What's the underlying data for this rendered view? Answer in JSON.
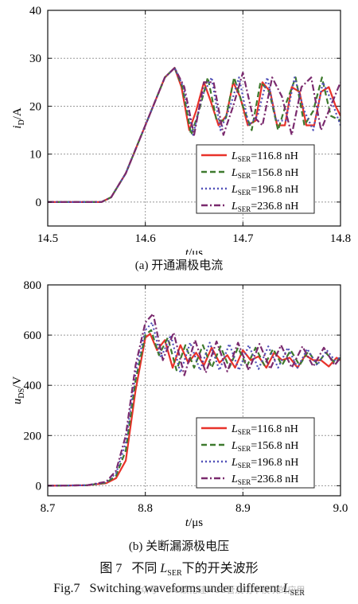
{
  "figure": {
    "caption_cn_prefix": "图 7",
    "caption_cn_mid": "不同",
    "caption_cn_var": "L",
    "caption_cn_var_sub": "SER",
    "caption_cn_suffix": "下的开关波形",
    "caption_en_prefix": "Fig.7",
    "caption_en_text": "Switching waveforms under different",
    "caption_en_var": "L",
    "caption_en_var_sub": "SER",
    "watermark": "公众号 · SiC碳化硅MOS管及功率模块的应用"
  },
  "legend_entries": [
    {
      "var": "L",
      "sub": "SER",
      "value": "=116.8 nH",
      "color": "#e8322a",
      "dash": "solid"
    },
    {
      "var": "L",
      "sub": "SER",
      "value": "=156.8 nH",
      "color": "#3e7a2e",
      "dash": "dash"
    },
    {
      "var": "L",
      "sub": "SER",
      "value": "=196.8 nH",
      "color": "#5050b8",
      "dash": "dot"
    },
    {
      "var": "L",
      "sub": "SER",
      "value": "=236.8 nH",
      "color": "#7a2a6e",
      "dash": "dashdot"
    }
  ],
  "chart_data": [
    {
      "type": "line",
      "panel_caption": "(a) 开通漏极电流",
      "xlabel": "t/μs",
      "ylabel": "iD/A",
      "ylabel_var": "i",
      "ylabel_sub": "D",
      "ylabel_unit": "/A",
      "xlim": [
        14.5,
        14.8
      ],
      "ylim": [
        -5,
        40
      ],
      "xticks": [
        14.5,
        14.6,
        14.7,
        14.8
      ],
      "xtick_labels": [
        "14.5",
        "14.6",
        "14.7",
        "14.8"
      ],
      "yticks": [
        0,
        10,
        20,
        30,
        40
      ],
      "ytick_labels": [
        "0",
        "10",
        "20",
        "30",
        "40"
      ],
      "grid": true,
      "legend_position": "bottom-right",
      "series": [
        {
          "name": "LSER=116.8 nH",
          "color": "#e8322a",
          "dash": "solid",
          "x": [
            14.5,
            14.555,
            14.565,
            14.58,
            14.6,
            14.62,
            14.63,
            14.637,
            14.645,
            14.652,
            14.66,
            14.667,
            14.675,
            14.683,
            14.69,
            14.697,
            14.705,
            14.713,
            14.72,
            14.728,
            14.735,
            14.743,
            14.75,
            14.758,
            14.765,
            14.773,
            14.78,
            14.788,
            14.795,
            14.8
          ],
          "y": [
            0,
            0,
            1,
            6,
            16,
            26,
            28,
            24,
            15,
            19,
            25,
            21,
            16,
            18,
            25,
            22,
            16,
            17,
            25,
            23,
            16,
            16,
            24,
            23,
            16,
            16,
            23,
            24,
            20,
            18
          ]
        },
        {
          "name": "LSER=156.8 nH",
          "color": "#3e7a2e",
          "dash": "dash",
          "x": [
            14.5,
            14.555,
            14.565,
            14.58,
            14.6,
            14.62,
            14.63,
            14.638,
            14.647,
            14.655,
            14.664,
            14.673,
            14.682,
            14.691,
            14.7,
            14.709,
            14.718,
            14.727,
            14.736,
            14.745,
            14.754,
            14.763,
            14.772,
            14.781,
            14.79,
            14.8
          ],
          "y": [
            0,
            0,
            1,
            6,
            16,
            26,
            28,
            24,
            14,
            19,
            26,
            17,
            17,
            26,
            20,
            15,
            25,
            23,
            15,
            21,
            26,
            16,
            19,
            26,
            18,
            17
          ]
        },
        {
          "name": "LSER=196.8 nH",
          "color": "#5050b8",
          "dash": "dot",
          "x": [
            14.5,
            14.555,
            14.565,
            14.58,
            14.6,
            14.62,
            14.63,
            14.639,
            14.649,
            14.658,
            14.668,
            14.677,
            14.687,
            14.696,
            14.706,
            14.715,
            14.725,
            14.734,
            14.744,
            14.753,
            14.763,
            14.772,
            14.782,
            14.791,
            14.8
          ],
          "y": [
            0,
            0,
            1,
            6,
            16,
            26,
            28,
            24,
            14,
            22,
            26,
            15,
            20,
            26,
            16,
            18,
            26,
            17,
            17,
            26,
            19,
            15,
            25,
            21,
            16
          ]
        },
        {
          "name": "LSER=236.8 nH",
          "color": "#7a2a6e",
          "dash": "dashdot",
          "x": [
            14.5,
            14.555,
            14.565,
            14.58,
            14.6,
            14.62,
            14.63,
            14.64,
            14.65,
            14.66,
            14.67,
            14.68,
            14.69,
            14.7,
            14.71,
            14.72,
            14.73,
            14.74,
            14.75,
            14.76,
            14.77,
            14.78,
            14.79,
            14.8
          ],
          "y": [
            0,
            0,
            1,
            6,
            16,
            26,
            28,
            24,
            14,
            25,
            25,
            14,
            20,
            27,
            18,
            16,
            26,
            22,
            14,
            24,
            26,
            15,
            20,
            25
          ]
        }
      ]
    },
    {
      "type": "line",
      "panel_caption": "(b) 关断漏源极电压",
      "xlabel": "t/μs",
      "ylabel": "uDS/V",
      "ylabel_var": "u",
      "ylabel_sub": "DS",
      "ylabel_unit": "/V",
      "xlim": [
        8.7,
        9.0
      ],
      "ylim": [
        -40,
        800
      ],
      "xticks": [
        8.7,
        8.8,
        8.9,
        9.0
      ],
      "xtick_labels": [
        "8.7",
        "8.8",
        "8.9",
        "9.0"
      ],
      "yticks": [
        0,
        200,
        400,
        600,
        800
      ],
      "ytick_labels": [
        "0",
        "200",
        "400",
        "600",
        "800"
      ],
      "grid": true,
      "legend_position": "bottom-right",
      "series": [
        {
          "name": "LSER=116.8 nH",
          "color": "#e8322a",
          "dash": "solid",
          "x": [
            8.7,
            8.74,
            8.76,
            8.77,
            8.78,
            8.79,
            8.8,
            8.805,
            8.812,
            8.82,
            8.828,
            8.836,
            8.844,
            8.852,
            8.86,
            8.868,
            8.876,
            8.884,
            8.892,
            8.9,
            8.908,
            8.916,
            8.924,
            8.932,
            8.94,
            8.948,
            8.956,
            8.964,
            8.972,
            8.98,
            8.988,
            8.996,
            9.0
          ],
          "y": [
            0,
            2,
            10,
            30,
            100,
            380,
            590,
            605,
            540,
            580,
            470,
            560,
            490,
            530,
            480,
            550,
            490,
            520,
            470,
            540,
            500,
            515,
            470,
            530,
            500,
            510,
            470,
            520,
            500,
            500,
            475,
            510,
            500
          ]
        },
        {
          "name": "LSER=156.8 nH",
          "color": "#3e7a2e",
          "dash": "dash",
          "x": [
            8.7,
            8.74,
            8.76,
            8.77,
            8.78,
            8.79,
            8.8,
            8.806,
            8.814,
            8.823,
            8.832,
            8.841,
            8.85,
            8.859,
            8.868,
            8.877,
            8.886,
            8.895,
            8.904,
            8.913,
            8.922,
            8.931,
            8.94,
            8.949,
            8.958,
            8.967,
            8.976,
            8.985,
            8.994,
            9.0
          ],
          "y": [
            0,
            2,
            12,
            40,
            140,
            420,
            600,
            620,
            520,
            590,
            460,
            560,
            470,
            560,
            470,
            555,
            470,
            550,
            475,
            550,
            480,
            545,
            480,
            540,
            480,
            535,
            485,
            530,
            490,
            510
          ]
        },
        {
          "name": "LSER=196.8 nH",
          "color": "#5050b8",
          "dash": "dot",
          "x": [
            8.7,
            8.74,
            8.76,
            8.77,
            8.78,
            8.79,
            8.8,
            8.807,
            8.816,
            8.826,
            8.836,
            8.846,
            8.856,
            8.866,
            8.876,
            8.886,
            8.896,
            8.906,
            8.916,
            8.926,
            8.936,
            8.946,
            8.956,
            8.966,
            8.976,
            8.986,
            8.996,
            9.0
          ],
          "y": [
            0,
            2,
            14,
            50,
            170,
            450,
            620,
            650,
            510,
            600,
            450,
            570,
            460,
            570,
            460,
            565,
            460,
            560,
            465,
            555,
            470,
            550,
            470,
            545,
            480,
            540,
            490,
            520
          ]
        },
        {
          "name": "LSER=236.8 nH",
          "color": "#7a2a6e",
          "dash": "dashdot",
          "x": [
            8.7,
            8.74,
            8.76,
            8.77,
            8.78,
            8.79,
            8.8,
            8.808,
            8.818,
            8.829,
            8.84,
            8.851,
            8.862,
            8.873,
            8.884,
            8.895,
            8.906,
            8.917,
            8.928,
            8.939,
            8.95,
            8.961,
            8.972,
            8.983,
            8.994,
            9.0
          ],
          "y": [
            0,
            2,
            16,
            60,
            200,
            480,
            650,
            685,
            500,
            610,
            440,
            580,
            450,
            575,
            455,
            570,
            460,
            565,
            465,
            560,
            470,
            555,
            475,
            550,
            480,
            510
          ]
        }
      ]
    }
  ]
}
